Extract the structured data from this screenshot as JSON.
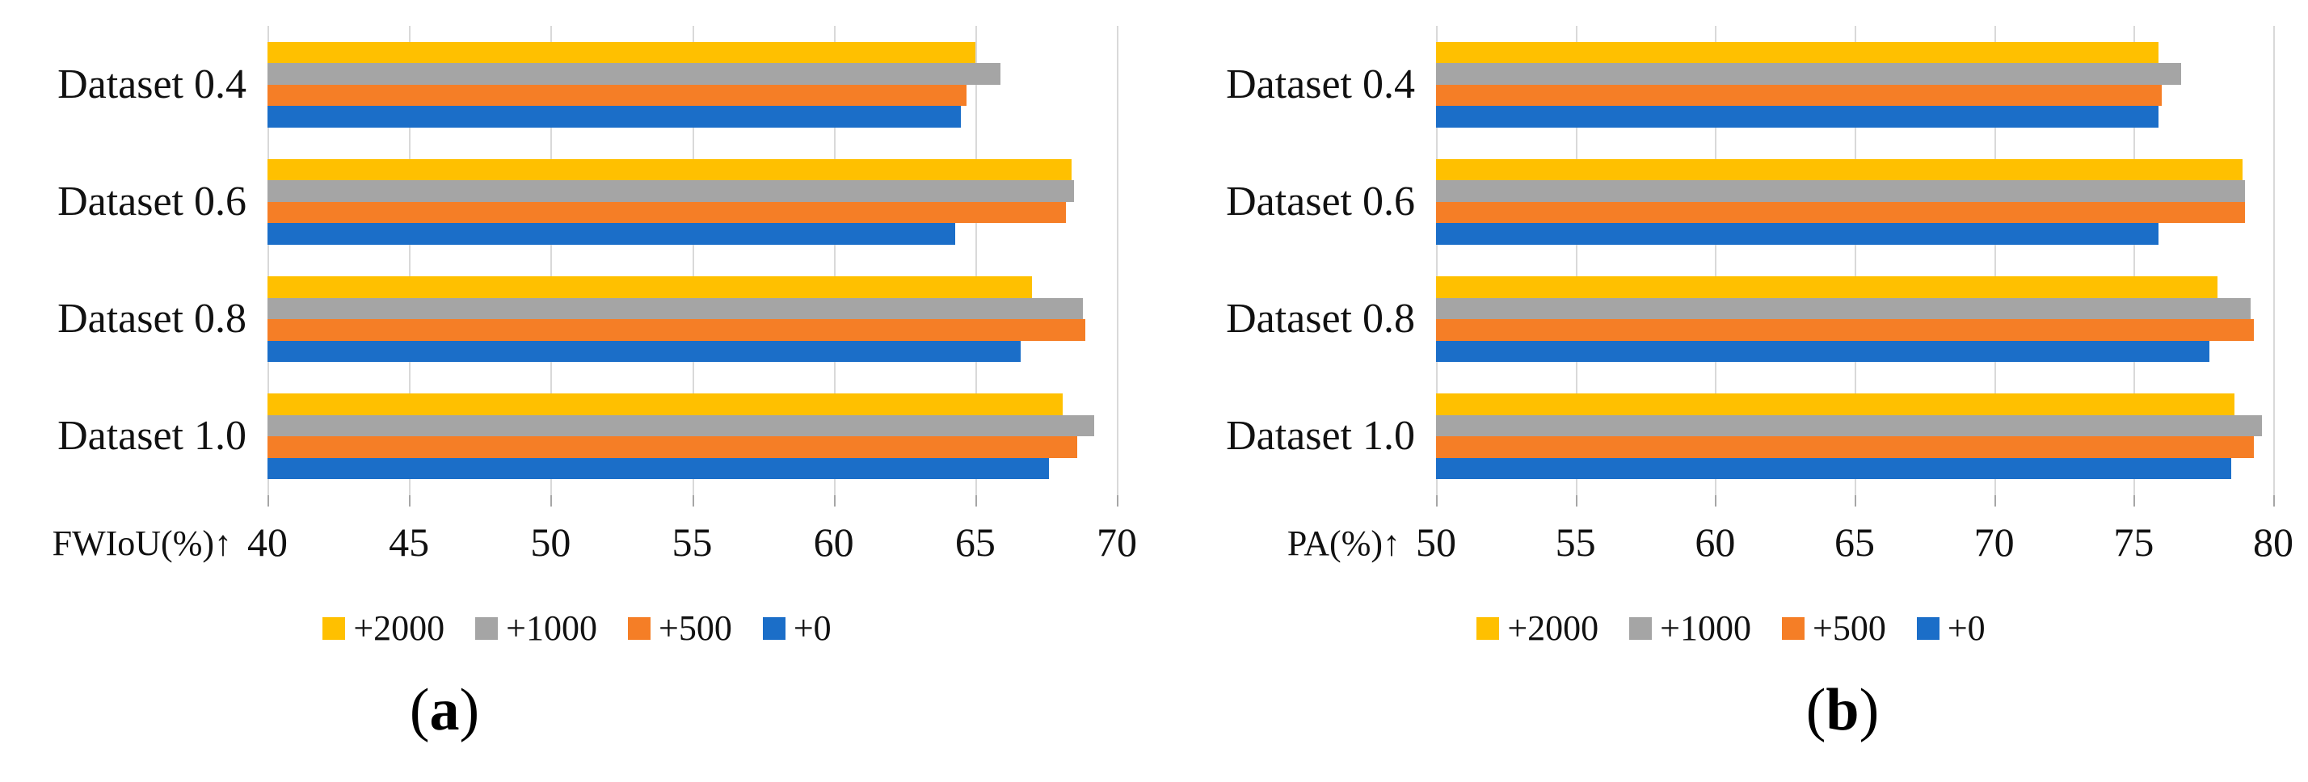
{
  "figure": {
    "background": "#ffffff",
    "grid_color": "#d9d9d9",
    "series_colors": {
      "+2000": "#FFC000",
      "+1000": "#A5A5A5",
      "+500": "#F57E26",
      "+0": "#1B6EC8"
    }
  },
  "chart_data": [
    {
      "type": "bar",
      "orientation": "horizontal",
      "title": "",
      "xlabel": "FWIoU(%)↑",
      "ylabel": "",
      "caption": "(a)",
      "categories": [
        "Dataset 0.4",
        "Dataset 0.6",
        "Dataset 0.8",
        "Dataset 1.0"
      ],
      "series": [
        {
          "name": "+2000",
          "color": "#FFC000",
          "values": [
            65.0,
            68.4,
            67.0,
            68.1
          ]
        },
        {
          "name": "+1000",
          "color": "#A5A5A5",
          "values": [
            65.9,
            68.5,
            68.8,
            69.2
          ]
        },
        {
          "name": "+500",
          "color": "#F57E26",
          "values": [
            64.7,
            68.2,
            68.9,
            68.6
          ]
        },
        {
          "name": "+0",
          "color": "#1B6EC8",
          "values": [
            64.5,
            64.3,
            66.6,
            67.6
          ]
        }
      ],
      "xlim": [
        40,
        70
      ],
      "tick_step": 5,
      "tick_labels": [
        "40",
        "45",
        "50",
        "55",
        "60",
        "65",
        "70"
      ],
      "grid": true,
      "legend_position": "bottom",
      "legend_entries": [
        "+2000",
        "+1000",
        "+500",
        "+0"
      ]
    },
    {
      "type": "bar",
      "orientation": "horizontal",
      "title": "",
      "xlabel": "PA(%)↑",
      "ylabel": "",
      "caption": "(b)",
      "categories": [
        "Dataset 0.4",
        "Dataset 0.6",
        "Dataset 0.8",
        "Dataset 1.0"
      ],
      "series": [
        {
          "name": "+2000",
          "color": "#FFC000",
          "values": [
            75.9,
            78.9,
            78.0,
            78.6
          ]
        },
        {
          "name": "+1000",
          "color": "#A5A5A5",
          "values": [
            76.7,
            79.0,
            79.2,
            79.6
          ]
        },
        {
          "name": "+500",
          "color": "#F57E26",
          "values": [
            76.0,
            79.0,
            79.3,
            79.3
          ]
        },
        {
          "name": "+0",
          "color": "#1B6EC8",
          "values": [
            75.9,
            75.9,
            77.7,
            78.5
          ]
        }
      ],
      "xlim": [
        50,
        80
      ],
      "tick_step": 5,
      "tick_labels": [
        "50",
        "55",
        "60",
        "65",
        "70",
        "75",
        "80"
      ],
      "grid": true,
      "legend_position": "bottom",
      "legend_entries": [
        "+2000",
        "+1000",
        "+500",
        "+0"
      ]
    }
  ]
}
